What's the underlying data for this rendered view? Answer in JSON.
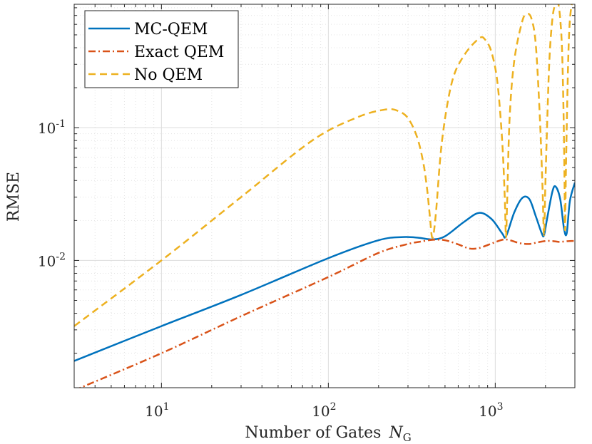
{
  "chart_data": {
    "type": "line",
    "xscale": "log",
    "yscale": "log",
    "xlim": [
      3,
      3000
    ],
    "ylim": [
      0.0011,
      0.85
    ],
    "xlabel": "Number of Gates",
    "xlabel_symbol": "N",
    "xlabel_subscript": "G",
    "ylabel": "RMSE",
    "grid": true,
    "minor_grid": true,
    "legend_position": "top-left",
    "x_ticks": [
      {
        "value": 10,
        "base": "10",
        "exp": "1"
      },
      {
        "value": 100,
        "base": "10",
        "exp": "2"
      },
      {
        "value": 1000,
        "base": "10",
        "exp": "3"
      }
    ],
    "y_ticks": [
      {
        "value": 0.01,
        "base": "10",
        "exp": "-2"
      },
      {
        "value": 0.1,
        "base": "10",
        "exp": "-1"
      }
    ],
    "series": [
      {
        "name": "MC-QEM",
        "color": "#0072BD",
        "style": "solid",
        "x": [
          3,
          10,
          30,
          100,
          200,
          280,
          350,
          420,
          500,
          650,
          800,
          950,
          1100,
          1160,
          1300,
          1450,
          1600,
          1750,
          1900,
          1960,
          2050,
          2200,
          2300,
          2450,
          2580,
          2680,
          2800,
          3000
        ],
        "y": [
          0.00175,
          0.0032,
          0.0055,
          0.0104,
          0.0142,
          0.015,
          0.0148,
          0.0144,
          0.0152,
          0.0195,
          0.0228,
          0.0205,
          0.016,
          0.0152,
          0.023,
          0.0295,
          0.029,
          0.0215,
          0.016,
          0.0155,
          0.021,
          0.033,
          0.036,
          0.029,
          0.0175,
          0.016,
          0.028,
          0.0385
        ]
      },
      {
        "name": "Exact QEM",
        "color": "#D95319",
        "style": "dashdot",
        "x": [
          3,
          10,
          30,
          100,
          200,
          300,
          350,
          420,
          500,
          600,
          700,
          800,
          950,
          1100,
          1200,
          1400,
          1600,
          1800,
          2000,
          2200,
          2400,
          2600,
          2800,
          3000
        ],
        "y": [
          0.00105,
          0.002,
          0.0038,
          0.0075,
          0.0114,
          0.0133,
          0.0138,
          0.0143,
          0.0142,
          0.0132,
          0.0123,
          0.0124,
          0.0134,
          0.0143,
          0.0143,
          0.0135,
          0.0133,
          0.0137,
          0.014,
          0.014,
          0.0138,
          0.0139,
          0.014,
          0.014
        ]
      },
      {
        "name": "No QEM",
        "color": "#EDB120",
        "style": "dashed",
        "x": [
          3,
          10,
          30,
          80,
          150,
          220,
          260,
          300,
          340,
          370,
          390,
          405,
          420,
          440,
          480,
          550,
          650,
          800,
          870,
          950,
          1030,
          1100,
          1140,
          1160,
          1180,
          1220,
          1300,
          1450,
          1550,
          1650,
          1750,
          1850,
          1920,
          1960,
          2000,
          2100,
          2200,
          2300,
          2400,
          2500,
          2560,
          2600,
          2620,
          2660,
          2750,
          2850,
          3000
        ],
        "y": [
          0.0032,
          0.01,
          0.03,
          0.08,
          0.12,
          0.137,
          0.134,
          0.118,
          0.085,
          0.055,
          0.035,
          0.022,
          0.0148,
          0.022,
          0.08,
          0.22,
          0.35,
          0.47,
          0.46,
          0.37,
          0.22,
          0.08,
          0.03,
          0.015,
          0.03,
          0.12,
          0.32,
          0.63,
          0.72,
          0.66,
          0.42,
          0.12,
          0.035,
          0.0155,
          0.04,
          0.28,
          0.66,
          0.85,
          0.83,
          0.45,
          0.15,
          0.04,
          0.017,
          0.06,
          0.4,
          0.8,
          0.95
        ]
      }
    ]
  }
}
